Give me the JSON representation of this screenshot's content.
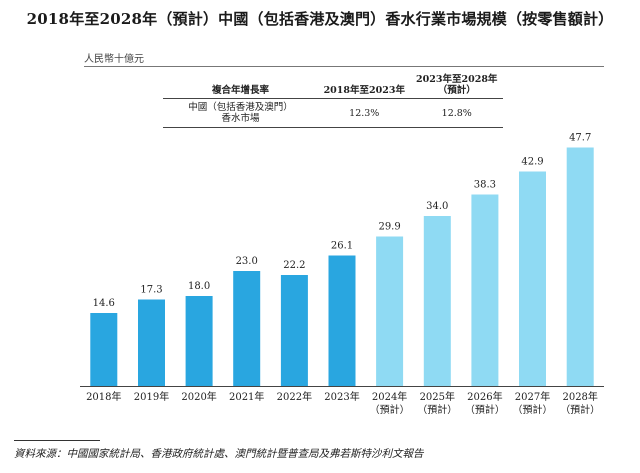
{
  "title": "2018年至2028年（預計）中國（包括香港及澳門）香水行業市場規模（按零售額計）",
  "unit_label": "人民幣十億元",
  "cagr_table": {
    "header": {
      "label": "複合年增長率",
      "period1": "2018年至2023年",
      "period2_line1": "2023年至2028年",
      "period2_line2": "（預計）"
    },
    "row": {
      "label_line1": "中國（包括香港及澳門）",
      "label_line2": "香水市場",
      "value1": "12.3%",
      "value2": "12.8%"
    }
  },
  "chart_data": {
    "type": "bar",
    "categories": [
      "2018年",
      "2019年",
      "2020年",
      "2021年",
      "2022年",
      "2023年",
      "2024年",
      "2025年",
      "2026年",
      "2027年",
      "2028年"
    ],
    "category_sublabels": [
      "",
      "",
      "",
      "",
      "",
      "",
      "（預計）",
      "（預計）",
      "（預計）",
      "（預計）",
      "（預計）"
    ],
    "values": [
      14.6,
      17.3,
      18.0,
      23.0,
      22.2,
      26.1,
      29.9,
      34.0,
      38.3,
      42.9,
      47.7
    ],
    "value_labels": [
      "14.6",
      "17.3",
      "18.0",
      "23.0",
      "22.2",
      "26.1",
      "29.9",
      "34.0",
      "38.3",
      "42.9",
      "47.7"
    ],
    "forecast_from_index": 6,
    "ylim": [
      0,
      50
    ],
    "grid": false,
    "colors": {
      "actual": "#29a6e0",
      "forecast": "#8fdaf3",
      "axis": "#444444"
    }
  },
  "source": "資料來源：中國國家統計局、香港政府統計處、澳門統計暨普查局及弗若斯特沙利文報告"
}
